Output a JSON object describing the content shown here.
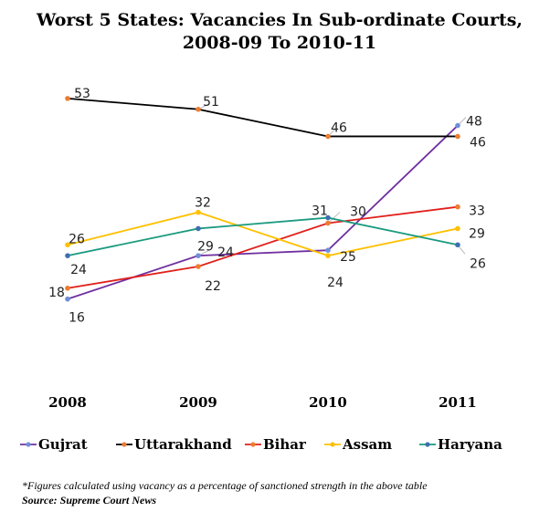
{
  "chart_data": {
    "type": "line",
    "title_line1": "Worst 5 States: Vacancies In Sub-ordinate Courts,",
    "title_line2": "2008-09 To 2010-11",
    "categories": [
      "2008",
      "2009",
      "2010",
      "2011"
    ],
    "ylim": [
      0,
      60
    ],
    "grid": false,
    "legend_position": "bottom",
    "series": [
      {
        "name": "Gujrat",
        "color": "#7030a0",
        "marker_color": "#6f8fd8",
        "values": [
          16,
          24,
          25,
          48
        ]
      },
      {
        "name": "Uttarakhand",
        "color": "#000000",
        "marker_color": "#ed7d31",
        "values": [
          53,
          51,
          46,
          46
        ]
      },
      {
        "name": "Bihar",
        "color": "#e0201b",
        "marker_color": "#ed7d31",
        "values": [
          18,
          22,
          30,
          33
        ]
      },
      {
        "name": "Assam",
        "color": "#ffc000",
        "marker_color": "#ffc000",
        "values": [
          26,
          32,
          24,
          29
        ]
      },
      {
        "name": "Haryana",
        "color": "#1a9a7f",
        "marker_color": "#3d6fb0",
        "values": [
          24,
          29,
          31,
          26
        ]
      }
    ],
    "footnote": "*Figures calculated using vacancy as a percentage of sanctioned strength in the above table",
    "source": "Source: Supreme Court News"
  }
}
